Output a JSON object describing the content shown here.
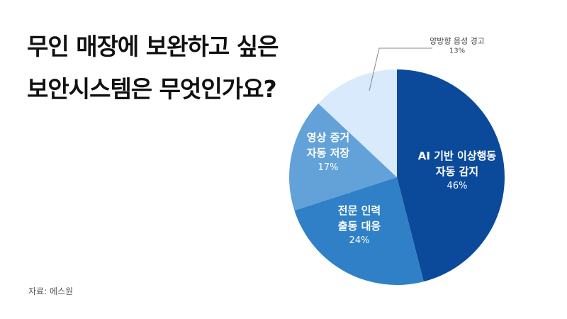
{
  "chart_data": {
    "type": "pie",
    "title": "무인 매장에 보완하고 싶은 보안시스템은 무엇인가요?",
    "categories": [
      "AI 기반 이상행동\n자동 감지",
      "전문 인력\n출동 대응",
      "영상 증거\n자동 저장",
      "양방향 음성 경고"
    ],
    "values": [
      46,
      24,
      17,
      13
    ],
    "value_labels": [
      "46%",
      "24%",
      "17%",
      "13%"
    ],
    "colors": [
      "#0b4a9b",
      "#2f80c6",
      "#62a2d8",
      "#d8eafb"
    ],
    "source": "자료: 에스원"
  }
}
